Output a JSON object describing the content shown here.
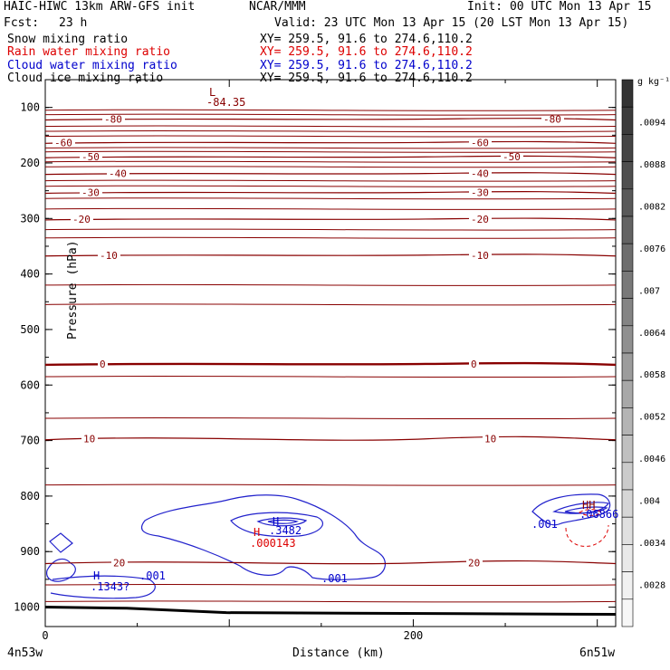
{
  "header": {
    "model": "HAIC-HIWC 13km ARW-GFS init",
    "org": "NCAR/MMM",
    "init": "Init: 00 UTC Mon 13 Apr 15",
    "fcst_label": "Fcst:",
    "fcst_value": "23 h",
    "valid": "Valid: 23 UTC Mon 13 Apr 15 (20 LST Mon 13 Apr 15)"
  },
  "fields": [
    {
      "name": "Snow mixing ratio",
      "xy": "XY= 259.5, 91.6 to 274.6,110.2",
      "color": "#000000"
    },
    {
      "name": "Rain water mixing ratio",
      "xy": "XY= 259.5, 91.6 to 274.6,110.2",
      "color": "#dd0000"
    },
    {
      "name": "Cloud water mixing ratio",
      "xy": "XY= 259.5, 91.6 to 274.6,110.2",
      "color": "#0000cc"
    },
    {
      "name": "Cloud ice mixing ratio",
      "xy": "XY= 259.5, 91.6 to 274.6,110.2",
      "color": "#000000"
    }
  ],
  "chart_data": {
    "type": "contour",
    "xlabel": "Distance (km)",
    "ylabel": "Pressure (hPa)",
    "x_ticks": [
      0,
      200
    ],
    "x_range": [
      0,
      310
    ],
    "y_ticks": [
      100,
      200,
      300,
      400,
      500,
      600,
      700,
      800,
      900,
      1000
    ],
    "y_range": [
      50,
      1035
    ],
    "x_start_label": "4n53w",
    "x_end_label": "6n51w",
    "temperature_contours": [
      {
        "label": "-80",
        "p": 121
      },
      {
        "label": "-60",
        "p": 163
      },
      {
        "label": "-50",
        "p": 189
      },
      {
        "label": "-40",
        "p": 219
      },
      {
        "label": "-30",
        "p": 253
      },
      {
        "label": "-20",
        "p": 301
      },
      {
        "label": "-10",
        "p": 366
      },
      {
        "label": "0",
        "p": 562
      },
      {
        "label": "10",
        "p": 697
      },
      {
        "label": "20",
        "p": 920
      }
    ],
    "max_min_labels": [
      {
        "label": "L",
        "value": "-84.35",
        "color": "#880000"
      },
      {
        "label": "H",
        "value": ".3482",
        "color": "#0000cc"
      },
      {
        "label": "H",
        "value": ".000143",
        "color": "#dd0000"
      },
      {
        "label": "H",
        "value": ".1343?",
        "color": "#0000cc"
      },
      {
        "label": "HH",
        "value": ".06866",
        "color": "#0000cc"
      }
    ],
    "contour_value_labels": [
      ".001",
      ".001",
      ".001"
    ],
    "colorbar_unit": "g kg⁻¹",
    "colorbar_ticks": [
      ".0094",
      ".0088",
      ".0082",
      ".0076",
      ".007",
      ".0064",
      ".0058",
      ".0052",
      ".0046",
      ".004",
      ".0034",
      ".0028"
    ],
    "colorbar_colors": [
      "#333333",
      "#3c3c3c",
      "#454545",
      "#4f4f4f",
      "#595959",
      "#636363",
      "#6e6e6e",
      "#797979",
      "#848484",
      "#909090",
      "#9c9c9c",
      "#a8a8a8",
      "#b4b4b4",
      "#c0c0c0",
      "#cbcbcb",
      "#d6d6d6",
      "#e0e0e0",
      "#e9e9e9",
      "#f1f1f1",
      "#f7f7f7"
    ]
  }
}
